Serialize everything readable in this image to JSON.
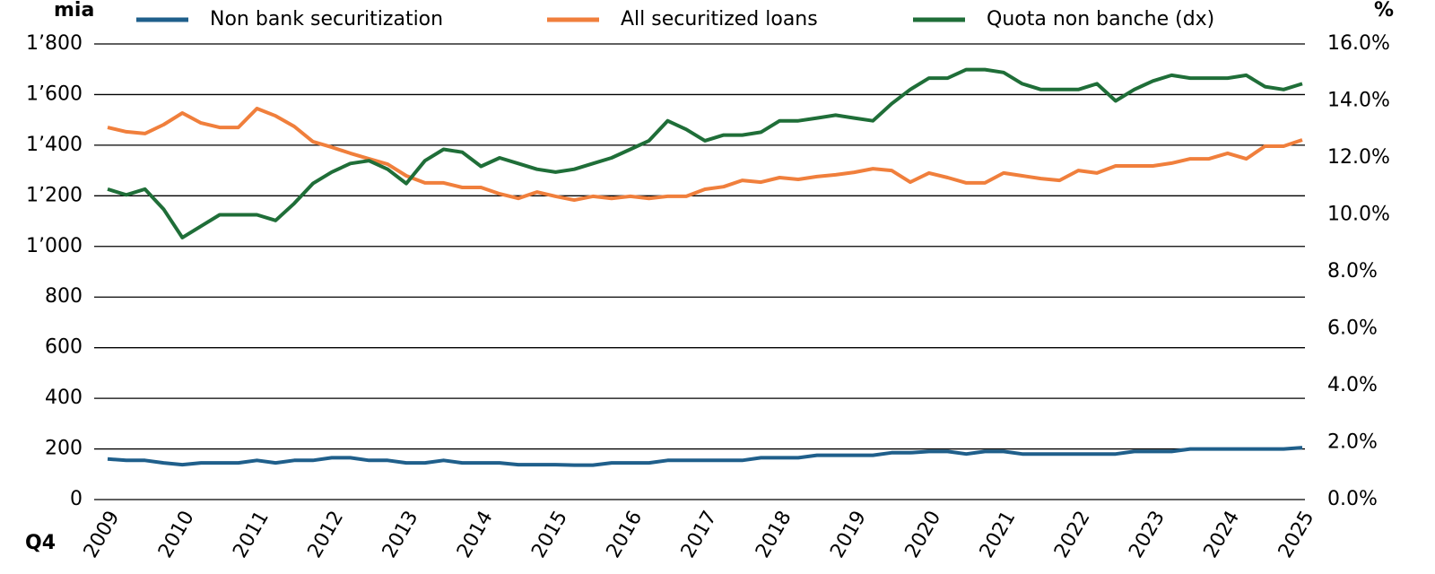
{
  "chart_data": {
    "type": "line",
    "y_label": "mia",
    "y2_label": "%",
    "x_label": "Q4",
    "categories": [
      "2009",
      null,
      null,
      null,
      "2010",
      null,
      null,
      null,
      "2011",
      null,
      null,
      null,
      "2012",
      null,
      null,
      null,
      "2013",
      null,
      null,
      null,
      "2014",
      null,
      null,
      null,
      "2015",
      null,
      null,
      null,
      "2016",
      null,
      null,
      null,
      "2017",
      null,
      null,
      null,
      "2018",
      null,
      null,
      null,
      "2019",
      null,
      null,
      null,
      "2020",
      null,
      null,
      null,
      "2021",
      null,
      null,
      null,
      "2022",
      null,
      null,
      null,
      "2023",
      null,
      null,
      null,
      "2024",
      null,
      null,
      null,
      "2025"
    ],
    "ylim": [
      0,
      1800
    ],
    "yticks": [
      0,
      200,
      400,
      600,
      800,
      {
        "value": 1000,
        "label": "1’000"
      },
      {
        "value": 1200,
        "label": "1’200"
      },
      {
        "value": 1400,
        "label": "1’400"
      },
      {
        "value": 1600,
        "label": "1’600"
      },
      {
        "value": 1800,
        "label": "1’800"
      }
    ],
    "y2lim": [
      0,
      16
    ],
    "y2ticks": [
      {
        "value": 0,
        "label": "0.0%"
      },
      {
        "value": 2,
        "label": "2.0%"
      },
      {
        "value": 4,
        "label": "4.0%"
      },
      {
        "value": 6,
        "label": "6.0%"
      },
      {
        "value": 8,
        "label": "8.0%"
      },
      {
        "value": 10,
        "label": "10.0%"
      },
      {
        "value": 12,
        "label": "12.0%"
      },
      {
        "value": 14,
        "label": "14.0%"
      },
      {
        "value": 16,
        "label": "16.0%"
      }
    ],
    "grid": true,
    "series": [
      {
        "name": "Non bank securitization",
        "color": "#1f5f8b",
        "values": [
          160,
          155,
          155,
          145,
          138,
          145,
          145,
          145,
          155,
          145,
          155,
          155,
          165,
          165,
          155,
          155,
          145,
          145,
          155,
          145,
          145,
          145,
          138,
          138,
          138,
          136,
          136,
          145,
          145,
          145,
          155,
          155,
          155,
          155,
          155,
          165,
          165,
          165,
          175,
          175,
          175,
          175,
          185,
          185,
          190,
          190,
          180,
          190,
          190,
          180,
          180,
          180,
          180,
          180,
          180,
          190,
          190,
          190,
          200,
          200,
          200,
          200,
          200,
          200,
          205
        ]
      },
      {
        "name": "All securitized loans",
        "color": "#f07f3c",
        "values": [
          1470,
          1453,
          1446,
          1481,
          1527,
          1488,
          1470,
          1470,
          1545,
          1516,
          1474,
          1414,
          1392,
          1368,
          1346,
          1325,
          1279,
          1251,
          1251,
          1233,
          1233,
          1208,
          1190,
          1215,
          1198,
          1183,
          1198,
          1190,
          1198,
          1190,
          1198,
          1198,
          1226,
          1236,
          1261,
          1254,
          1272,
          1265,
          1276,
          1283,
          1293,
          1307,
          1300,
          1254,
          1290,
          1272,
          1251,
          1251,
          1290,
          1279,
          1268,
          1261,
          1300,
          1290,
          1318,
          1318,
          1318,
          1329,
          1346,
          1346,
          1368,
          1346,
          1396,
          1396,
          1421
        ]
      },
      {
        "name": "Quota non banche (dx)",
        "color": "#1f6e38",
        "axis": "y2",
        "values": [
          10.9,
          10.7,
          10.9,
          10.2,
          9.2,
          9.6,
          10.0,
          10.0,
          10.0,
          9.8,
          10.4,
          11.1,
          11.5,
          11.8,
          11.9,
          11.6,
          11.1,
          11.9,
          12.3,
          12.2,
          11.7,
          12.0,
          11.8,
          11.6,
          11.5,
          11.6,
          11.8,
          12.0,
          12.3,
          12.6,
          13.3,
          13.0,
          12.6,
          12.8,
          12.8,
          12.9,
          13.3,
          13.3,
          13.4,
          13.5,
          13.4,
          13.3,
          13.9,
          14.4,
          14.8,
          14.8,
          15.1,
          15.1,
          15.0,
          14.6,
          14.4,
          14.4,
          14.4,
          14.6,
          14.0,
          14.4,
          14.7,
          14.9,
          14.8,
          14.8,
          14.8,
          14.9,
          14.5,
          14.4,
          14.6
        ]
      }
    ]
  }
}
